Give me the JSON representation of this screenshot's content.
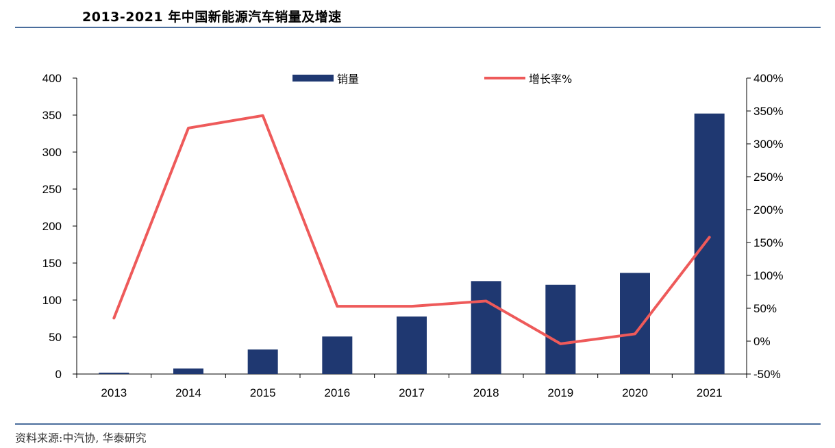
{
  "title": "2013-2021 年中国新能源汽车销量及增速",
  "source": "资料来源:中汽协, 华泰研究",
  "colors": {
    "bar": "#1f3871",
    "line": "#ee5a5a",
    "rule": "#4a6d9c",
    "axis": "#000000"
  },
  "chart_data": {
    "type": "bar",
    "categories": [
      "2013",
      "2014",
      "2015",
      "2016",
      "2017",
      "2018",
      "2019",
      "2020",
      "2021"
    ],
    "series": [
      {
        "name": "销量",
        "type": "bar",
        "axis": "left",
        "values": [
          1.8,
          7.5,
          33.1,
          50.7,
          77.7,
          125.6,
          120.6,
          136.7,
          352.1
        ]
      },
      {
        "name": "增长率%",
        "type": "line",
        "axis": "right",
        "values": [
          35,
          324,
          343,
          53,
          53,
          61,
          -4,
          11,
          158
        ]
      }
    ],
    "y_left": {
      "min": 0,
      "max": 400,
      "ticks": [
        0,
        50,
        100,
        150,
        200,
        250,
        300,
        350,
        400
      ],
      "tick_labels": [
        "0",
        "50",
        "100",
        "150",
        "200",
        "250",
        "300",
        "350",
        "400"
      ]
    },
    "y_right": {
      "min": -50,
      "max": 400,
      "ticks": [
        -50,
        0,
        50,
        100,
        150,
        200,
        250,
        300,
        350,
        400
      ],
      "tick_labels": [
        "-50%",
        "0%",
        "50%",
        "100%",
        "150%",
        "200%",
        "250%",
        "300%",
        "350%",
        "400%"
      ]
    },
    "legend_position": "top",
    "grid": false
  }
}
